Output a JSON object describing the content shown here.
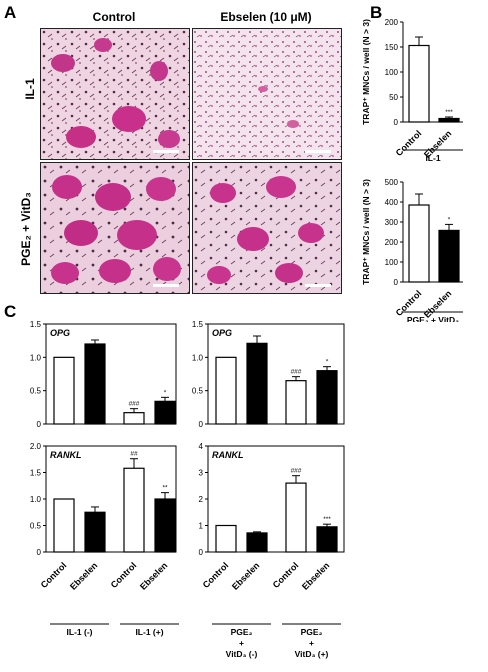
{
  "panel_a": {
    "letter": "A",
    "col_labels": [
      "Control",
      "Ebselen (10 μM)"
    ],
    "row_labels": [
      "IL-1",
      "PGE₂ + VitD₃"
    ]
  },
  "panel_b": {
    "letter": "B"
  },
  "panel_c": {
    "letter": "C"
  },
  "chart_data": [
    {
      "id": "b1",
      "type": "bar",
      "categories": [
        "Control",
        "Ebselen"
      ],
      "values": [
        153,
        7
      ],
      "errors": [
        17,
        3
      ],
      "fills": [
        "#ffffff",
        "#000000"
      ],
      "ylabel": "TRAP⁺ MNCs / well (N > 3)",
      "ylim": [
        0,
        200
      ],
      "yticks": [
        0,
        50,
        100,
        150,
        200
      ],
      "annotations": [
        "",
        "***"
      ],
      "group_labels": [
        "IL-1"
      ]
    },
    {
      "id": "b2",
      "type": "bar",
      "categories": [
        "Control",
        "Ebselen"
      ],
      "values": [
        385,
        258
      ],
      "errors": [
        55,
        30
      ],
      "fills": [
        "#ffffff",
        "#000000"
      ],
      "ylabel": "TRAP⁺ MNCs / well (N > 3)",
      "ylim": [
        0,
        500
      ],
      "yticks": [
        0,
        100,
        200,
        300,
        400,
        500
      ],
      "annotations": [
        "",
        "*"
      ],
      "group_labels": [
        "PGE₂ + VitD₃"
      ]
    },
    {
      "id": "c1",
      "type": "bar",
      "title": "OPG",
      "categories": [
        "Control",
        "Ebselen",
        "Control",
        "Ebselen"
      ],
      "values": [
        1.0,
        1.2,
        0.17,
        0.34
      ],
      "errors": [
        0,
        0.06,
        0.06,
        0.06
      ],
      "fills": [
        "#ffffff",
        "#000000",
        "#ffffff",
        "#000000"
      ],
      "ylim": [
        0,
        1.5
      ],
      "yticks": [
        0,
        0.5,
        1.0,
        1.5
      ],
      "ytick_labels": [
        "0",
        "0.5",
        "1.0",
        "1.5"
      ],
      "annotations": [
        "",
        "",
        "###",
        "*"
      ]
    },
    {
      "id": "c2",
      "type": "bar",
      "title": "OPG",
      "categories": [
        "Control",
        "Ebselen",
        "Control",
        "Ebselen"
      ],
      "values": [
        1.0,
        1.21,
        0.65,
        0.8
      ],
      "errors": [
        0,
        0.11,
        0.06,
        0.06
      ],
      "fills": [
        "#ffffff",
        "#000000",
        "#ffffff",
        "#000000"
      ],
      "ylim": [
        0,
        1.5
      ],
      "yticks": [
        0,
        0.5,
        1.0,
        1.5
      ],
      "ytick_labels": [
        "0",
        "0.5",
        "1.0",
        "1.5"
      ],
      "annotations": [
        "",
        "",
        "###",
        "*"
      ]
    },
    {
      "id": "c3",
      "type": "bar",
      "title": "RANKL",
      "categories": [
        "Control",
        "Ebselen",
        "Control",
        "Ebselen"
      ],
      "values": [
        1.0,
        0.75,
        1.58,
        1.0
      ],
      "errors": [
        0,
        0.1,
        0.18,
        0.12
      ],
      "fills": [
        "#ffffff",
        "#000000",
        "#ffffff",
        "#000000"
      ],
      "ylim": [
        0,
        2.0
      ],
      "yticks": [
        0,
        0.5,
        1.0,
        1.5,
        2.0
      ],
      "ytick_labels": [
        "0",
        "0.5",
        "1.0",
        "1.5",
        "2.0"
      ],
      "annotations": [
        "",
        "",
        "##",
        "**"
      ],
      "group_labels": [
        "IL-1 (-)",
        "IL-1 (+)"
      ]
    },
    {
      "id": "c4",
      "type": "bar",
      "title": "RANKL",
      "categories": [
        "Control",
        "Ebselen",
        "Control",
        "Ebselen"
      ],
      "values": [
        1.0,
        0.72,
        2.6,
        0.95
      ],
      "errors": [
        0,
        0.04,
        0.28,
        0.1
      ],
      "fills": [
        "#ffffff",
        "#000000",
        "#ffffff",
        "#000000"
      ],
      "ylim": [
        0,
        4
      ],
      "yticks": [
        0,
        1,
        2,
        3,
        4
      ],
      "ytick_labels": [
        "0",
        "1",
        "2",
        "3",
        "4"
      ],
      "annotations": [
        "",
        "",
        "###",
        "***"
      ],
      "group_labels": [
        "PGE₂ + VitD₃ (-)",
        "PGE₂ + VitD₃ (+)"
      ]
    }
  ]
}
